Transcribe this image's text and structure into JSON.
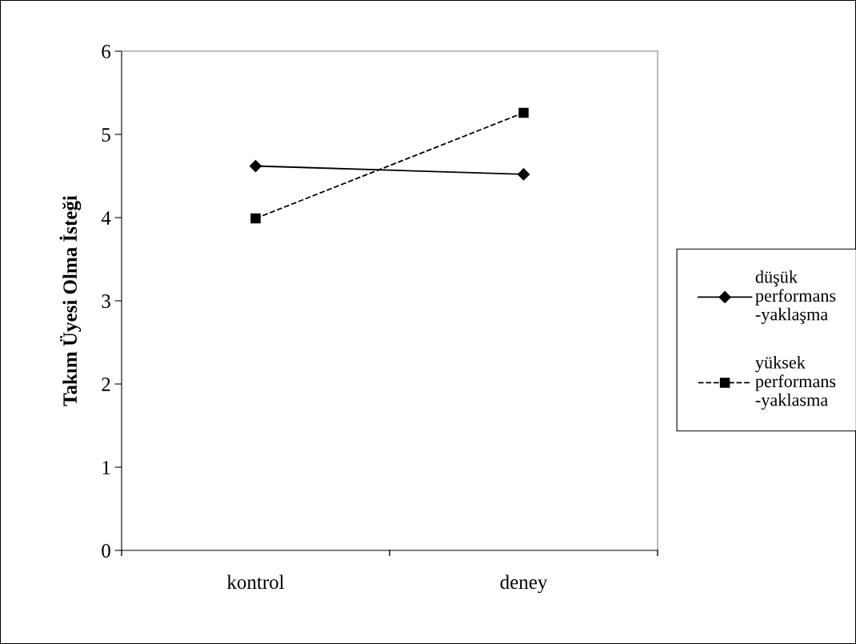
{
  "chart_data": {
    "type": "line",
    "ylabel": "Takım Üyesi Olma İsteği",
    "categories": [
      "kontrol",
      "deney"
    ],
    "series": [
      {
        "name": "düşük\nperformans\n-yaklaşma",
        "color": "#000000",
        "values": [
          4.62,
          4.52
        ],
        "marker": "diamond",
        "line_style": "solid"
      },
      {
        "name": "yüksek\nperformans\n-yaklasma",
        "color": "#000000",
        "values": [
          3.99,
          5.26
        ],
        "marker": "square",
        "line_style": "dashed"
      }
    ],
    "ylim": [
      0,
      6
    ],
    "yticks": [
      0,
      1,
      2,
      3,
      4,
      5,
      6
    ],
    "grid": false,
    "legend": "right"
  }
}
